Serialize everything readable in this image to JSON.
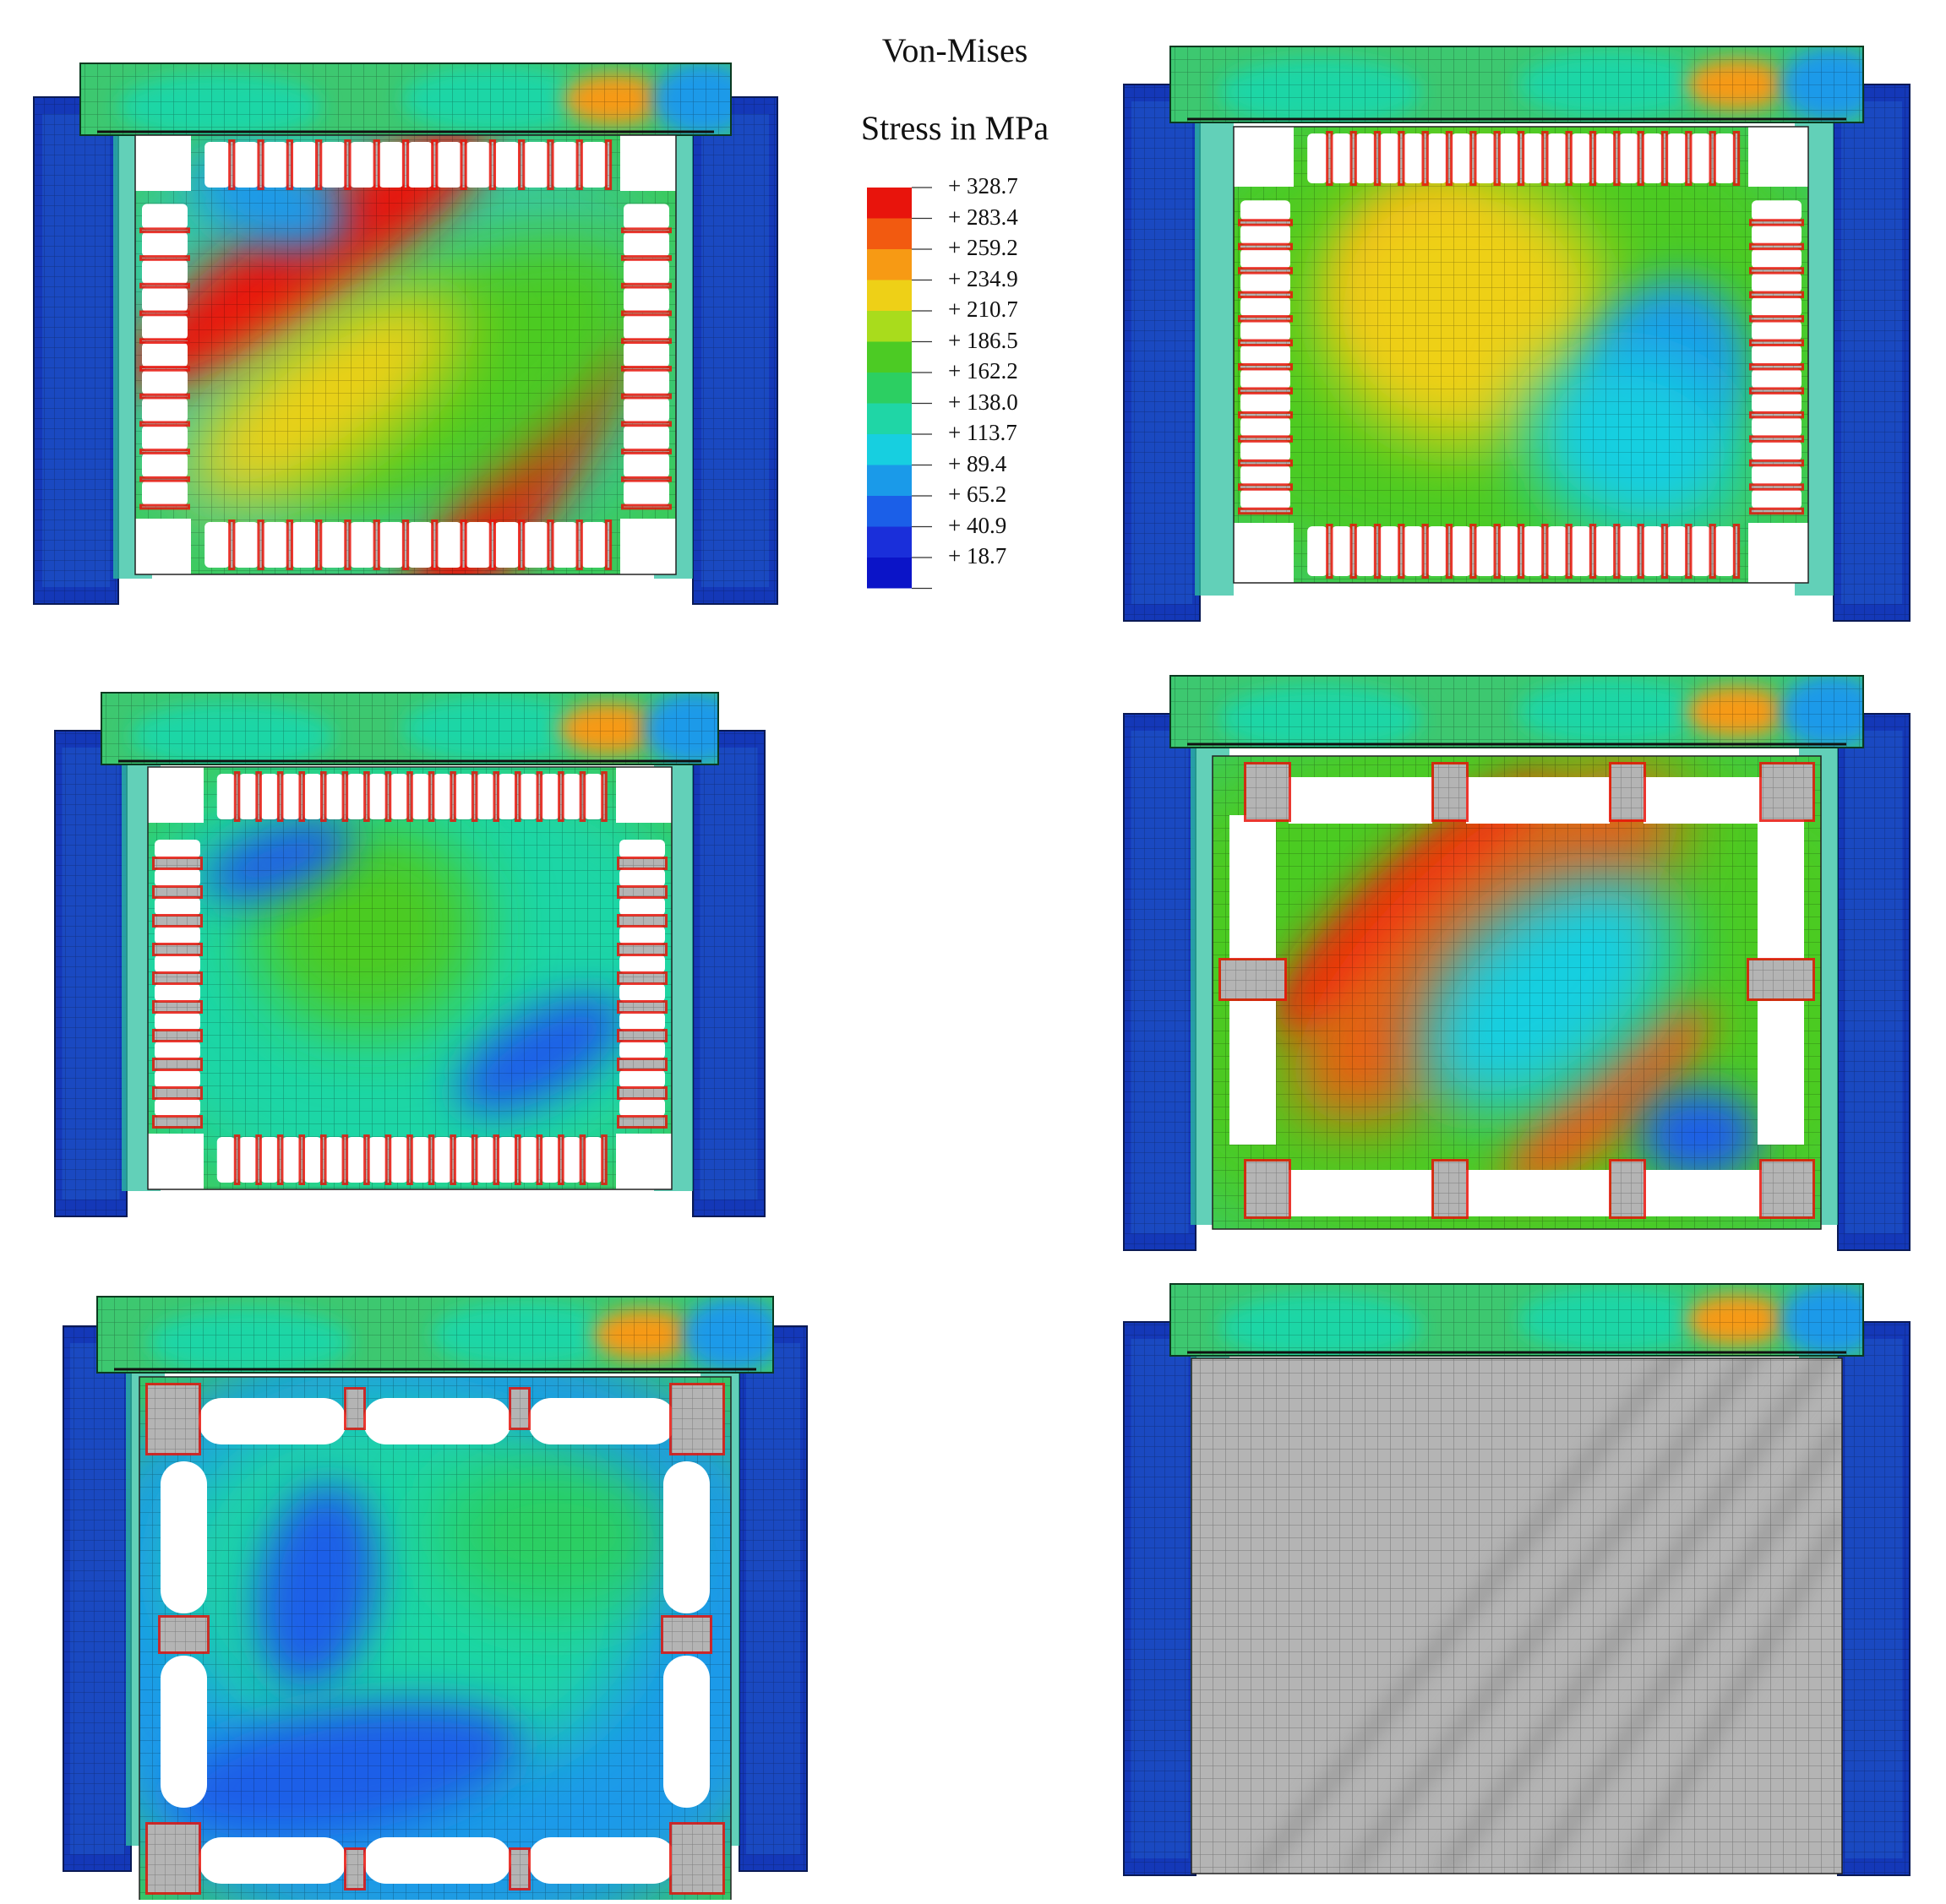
{
  "legend": {
    "title_line1": "Von-Mises",
    "title_line2": "Stress in MPa",
    "levels": [
      "+ 328.7",
      "+ 283.4",
      "+ 259.2",
      "+ 234.9",
      "+ 210.7",
      "+ 186.5",
      "+ 162.2",
      "+ 138.0",
      "+ 113.7",
      "+ 89.4",
      "+ 65.2",
      "+ 40.9",
      "+ 18.7"
    ],
    "colors": [
      "#e8140c",
      "#f25a10",
      "#f79a14",
      "#eed017",
      "#a9dc1c",
      "#4ccb24",
      "#2ccf62",
      "#1fd6a6",
      "#17cfe0",
      "#1a9ae9",
      "#1b5fe8",
      "#1a2fda",
      "#0b14c8"
    ]
  },
  "palette": {
    "beam_base": "#3dc870",
    "column_base": "#1438b8",
    "panel_base": "#3cca5a",
    "yield_gray": "#b4b4b4",
    "mesh_line": "rgba(0,0,0,0.28)"
  },
  "panels": [
    {
      "id": "top-left",
      "variant": "slit-bow",
      "field": "diagonal-high"
    },
    {
      "id": "top-right",
      "variant": "slit-rect",
      "field": "moderate"
    },
    {
      "id": "middle-left",
      "variant": "slit-bow",
      "field": "low"
    },
    {
      "id": "middle-right",
      "variant": "large-openings",
      "field": "diagonal-high"
    },
    {
      "id": "bottom-left",
      "variant": "oblong-openings",
      "field": "low"
    },
    {
      "id": "bottom-right",
      "variant": "solid-yielded",
      "field": "yielded"
    }
  ]
}
